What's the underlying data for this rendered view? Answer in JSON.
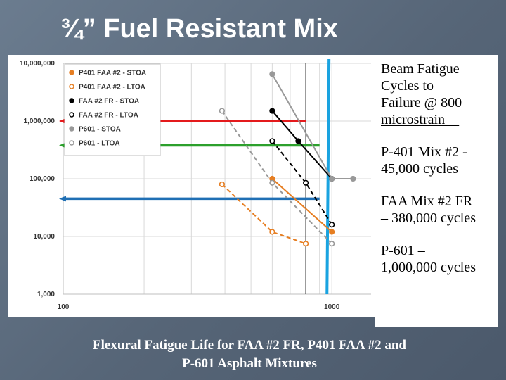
{
  "slide": {
    "title": "¾” Fuel Resistant Mix"
  },
  "info_box": {
    "heading_lines": [
      "Beam Fatigue",
      "Cycles to",
      "Failure @ 800"
    ],
    "heading_underlined": "microstrain__",
    "items": [
      [
        "P-401 Mix #2 -",
        "45,000 cycles"
      ],
      [
        "FAA Mix #2 FR",
        "– 380,000 cycles"
      ],
      [
        "P-601 –",
        "1,000,000 cycles"
      ]
    ]
  },
  "caption": {
    "lines": [
      "Flexural Fatigue Life for FAA #2 FR, P401 FAA #2 and",
      "P-601 Asphalt Mixtures"
    ]
  },
  "chart_data": {
    "type": "scatter",
    "x_scale": "log",
    "y_scale": "log",
    "xlim": [
      100,
      1400
    ],
    "ylim": [
      1000,
      10000000
    ],
    "x_ticks": [
      "100",
      "1000"
    ],
    "y_ticks": [
      "1,000",
      "10,000",
      "100,000",
      "1,000,000",
      "10,000,000"
    ],
    "grid": true,
    "legend_position": "top-left",
    "series": [
      {
        "name": "P401 FAA #2 - STOA",
        "color": "#e67e22",
        "marker": "filled",
        "line": "solid",
        "x": [
          600,
          1000
        ],
        "y": [
          100000,
          12000
        ]
      },
      {
        "name": "P401 FAA #2 - LTOA",
        "color": "#e67e22",
        "marker": "open",
        "line": "dashed",
        "x": [
          390,
          600,
          800
        ],
        "y": [
          80000,
          12000,
          7500
        ]
      },
      {
        "name": "FAA #2 FR - STOA",
        "color": "#000000",
        "marker": "filled",
        "line": "solid",
        "x": [
          600,
          750,
          1000
        ],
        "y": [
          1500000,
          450000,
          100000
        ]
      },
      {
        "name": "FAA #2 FR - LTOA",
        "color": "#000000",
        "marker": "open",
        "line": "dashed",
        "x": [
          600,
          800,
          1000
        ],
        "y": [
          450000,
          85000,
          16000
        ]
      },
      {
        "name": "P601 - STOA",
        "color": "#999999",
        "marker": "filled",
        "line": "solid",
        "x": [
          600,
          1000,
          1200
        ],
        "y": [
          6500000,
          100000,
          100000
        ]
      },
      {
        "name": "P601 - LTOA",
        "color": "#999999",
        "marker": "open",
        "line": "dashed",
        "x": [
          390,
          600,
          1000
        ],
        "y": [
          1500000,
          85000,
          7500
        ]
      }
    ],
    "annotations": {
      "reference_lines": [
        {
          "kind": "vertical",
          "x": 800,
          "color": "#000000"
        },
        {
          "kind": "near-vertical",
          "x_top": 1600,
          "x_bottom": 1650,
          "color": "#1aa3e0"
        },
        {
          "kind": "horizontal",
          "y": 1000000,
          "from_x": 100,
          "to_x": 800,
          "color": "#e41a1c"
        },
        {
          "kind": "horizontal",
          "y": 380000,
          "from_x": 100,
          "to_x": 900,
          "color": "#2ca02c"
        },
        {
          "kind": "horizontal",
          "y": 45000,
          "from_x": 100,
          "to_x": 900,
          "color": "#1f6fb4"
        }
      ]
    }
  }
}
